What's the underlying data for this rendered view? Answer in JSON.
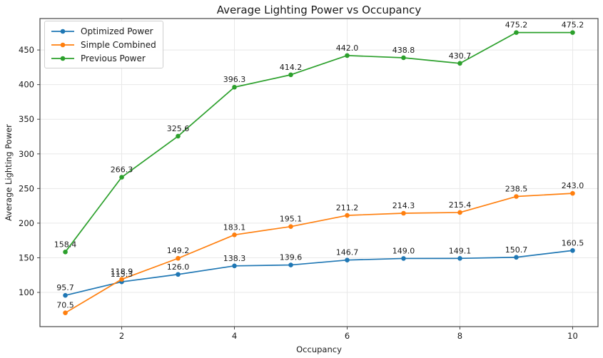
{
  "title": "Average Lighting Power vs Occupancy",
  "colors": {
    "series_blue": "#1f77b4",
    "series_orange": "#ff7f0e",
    "series_green": "#2ca02c",
    "grid": "#e8e8e8",
    "spine": "#454545",
    "text": "#1a1a1a",
    "legend_border": "#cfcfcf"
  },
  "chart_data": {
    "type": "line",
    "title": "Average Lighting Power vs Occupancy",
    "xlabel": "Occupancy",
    "ylabel": "Average Lighting Power",
    "x": [
      1,
      2,
      3,
      4,
      5,
      6,
      7,
      8,
      9,
      10
    ],
    "xticks": [
      2,
      4,
      6,
      8,
      10
    ],
    "yticks": [
      100,
      150,
      200,
      250,
      300,
      350,
      400,
      450
    ],
    "xlim": [
      0.55,
      10.45
    ],
    "ylim": [
      50.6,
      495.4
    ],
    "grid": true,
    "point_labels": true,
    "label_decimals": 1,
    "legend_position": "upper left",
    "series": [
      {
        "name": "Optimized Power",
        "color": "#1f77b4",
        "values": [
          95.7,
          115.3,
          126.0,
          138.3,
          139.6,
          146.7,
          149.0,
          149.1,
          150.7,
          160.5
        ]
      },
      {
        "name": "Simple Combined",
        "color": "#ff7f0e",
        "values": [
          70.5,
          118.9,
          149.2,
          183.1,
          195.1,
          211.2,
          214.3,
          215.4,
          238.5,
          243.0
        ]
      },
      {
        "name": "Previous Power",
        "color": "#2ca02c",
        "values": [
          158.4,
          266.3,
          325.6,
          396.3,
          414.2,
          442.0,
          438.8,
          430.7,
          475.2,
          475.2
        ]
      }
    ]
  }
}
